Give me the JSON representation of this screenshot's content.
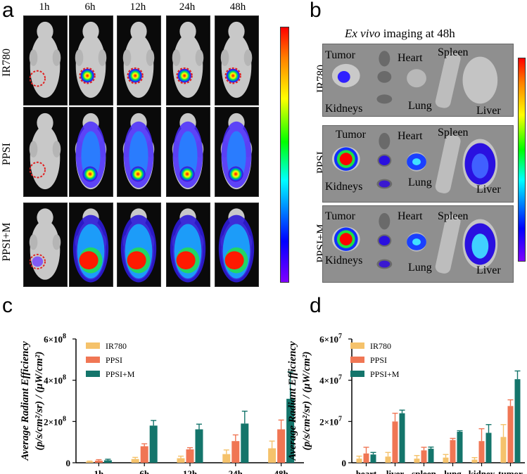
{
  "panels": {
    "a": "a",
    "b": "b",
    "c": "c",
    "d": "d"
  },
  "panel_a": {
    "time_points": [
      "1h",
      "6h",
      "12h",
      "24h",
      "48h"
    ],
    "rows": [
      "IR780",
      "PPSI",
      "PPSI+M"
    ]
  },
  "panel_b": {
    "title_italic": "Ex vivo",
    "title_rest": " imaging at 48h",
    "rows": [
      "IR780",
      "PPSI",
      "PPSI+M"
    ],
    "organ_labels": {
      "tumor": "Tumor",
      "heart": "Heart",
      "spleen": "Spleen",
      "kidneys": "Kidneys",
      "lung": "Lung",
      "liver": "Liver"
    }
  },
  "colors": {
    "IR780": "#f5c26b",
    "PPSI": "#f07654",
    "PPSI_M": "#14756b"
  },
  "chart_data": [
    {
      "type": "bar",
      "panel": "c",
      "title": "",
      "xlabel": "",
      "ylabel": "Average Radiant Efficiency (p/s/cm²/sr) / (μW/cm²)",
      "ylabel_line1": "Average Radiant Efficiency",
      "ylabel_line2": "(p/s/cm²/sr) / (μW/cm²)",
      "categories": [
        "1h",
        "6h",
        "12h",
        "24h",
        "48h"
      ],
      "ylim": [
        0,
        600000000
      ],
      "yticks": [
        {
          "value": 0,
          "label": "0"
        },
        {
          "value": 200000000,
          "label": "2×10",
          "exp": "8"
        },
        {
          "value": 400000000,
          "label": "4×10",
          "exp": "8"
        },
        {
          "value": 600000000,
          "label": "6×10",
          "exp": "8"
        }
      ],
      "legend": "top-left",
      "series": [
        {
          "name": "IR780",
          "values": [
            5000000,
            18000000,
            22000000,
            42000000,
            70000000
          ],
          "errors": [
            3000000,
            8000000,
            10000000,
            20000000,
            35000000
          ]
        },
        {
          "name": "PPSI",
          "values": [
            10000000,
            80000000,
            65000000,
            105000000,
            162000000
          ],
          "errors": [
            5000000,
            12000000,
            8000000,
            30000000,
            45000000
          ]
        },
        {
          "name": "PPSI+M",
          "values": [
            12000000,
            180000000,
            162000000,
            190000000,
            310000000
          ],
          "errors": [
            5000000,
            25000000,
            25000000,
            60000000,
            130000000
          ]
        }
      ]
    },
    {
      "type": "bar",
      "panel": "d",
      "title": "",
      "xlabel": "",
      "ylabel": "Average Radiant Efficiency (p/s/cm²/sr) / (μW/cm²)",
      "ylabel_line1": "Average Radiant Efficiency",
      "ylabel_line2": "(p/s/cm²/sr) / (μW/cm²)",
      "categories": [
        "heart",
        "liver",
        "spleen",
        "lung",
        "kidney",
        "tumor"
      ],
      "ylim": [
        0,
        60000000
      ],
      "yticks": [
        {
          "value": 0,
          "label": "0"
        },
        {
          "value": 20000000,
          "label": "2×10",
          "exp": "7"
        },
        {
          "value": 40000000,
          "label": "4×10",
          "exp": "7"
        },
        {
          "value": 60000000,
          "label": "6×10",
          "exp": "7"
        }
      ],
      "legend": "top-left",
      "series": [
        {
          "name": "IR780",
          "values": [
            2000000,
            3000000,
            2000000,
            2500000,
            1500000,
            12500000
          ],
          "errors": [
            1200000,
            2000000,
            1500000,
            1500000,
            1000000,
            6000000
          ]
        },
        {
          "name": "PPSI",
          "values": [
            4500000,
            20000000,
            6000000,
            11000000,
            10500000,
            27500000
          ],
          "errors": [
            3000000,
            4000000,
            1500000,
            800000,
            6000000,
            3000000
          ]
        },
        {
          "name": "PPSI+M",
          "values": [
            4000000,
            24000000,
            6800000,
            15000000,
            14500000,
            40500000
          ],
          "errors": [
            1000000,
            1500000,
            800000,
            500000,
            4000000,
            4000000
          ]
        }
      ]
    }
  ]
}
